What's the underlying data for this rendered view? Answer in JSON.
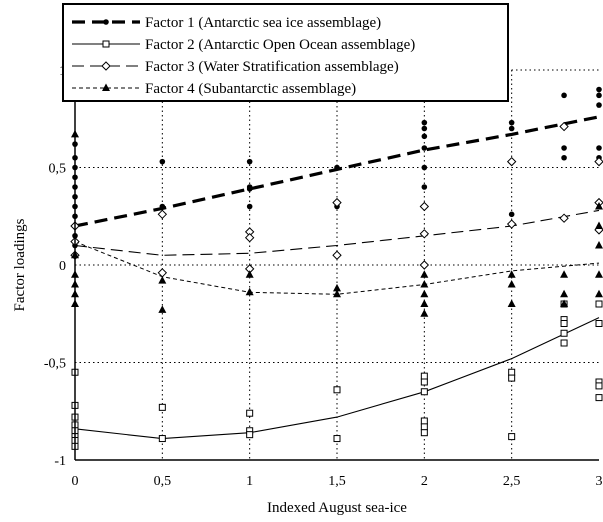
{
  "chart_data": {
    "type": "scatter",
    "xlabel": "Indexed August sea-ice",
    "ylabel": "Factor loadings",
    "xlim": [
      0,
      3
    ],
    "ylim": [
      -1,
      1
    ],
    "x_ticks": [
      "0",
      "0,5",
      "1",
      "1,5",
      "2",
      "2,5",
      "3"
    ],
    "y_ticks": [
      "-1",
      "-0,5",
      "0",
      "0,5",
      "1"
    ],
    "grid": true,
    "legend_position": "top-left",
    "series": [
      {
        "name": "Factor 1 (Antarctic sea ice assemblage)",
        "marker": "filled-circle",
        "trend": [
          [
            0,
            0.2
          ],
          [
            0.5,
            0.29
          ],
          [
            1,
            0.39
          ],
          [
            1.5,
            0.49
          ],
          [
            2,
            0.59
          ],
          [
            2.5,
            0.67
          ],
          [
            3,
            0.76
          ]
        ],
        "points": [
          [
            0,
            0.62
          ],
          [
            0,
            0.55
          ],
          [
            0,
            0.5
          ],
          [
            0,
            0.45
          ],
          [
            0,
            0.4
          ],
          [
            0,
            0.35
          ],
          [
            0,
            0.3
          ],
          [
            0,
            0.25
          ],
          [
            0,
            0.2
          ],
          [
            0,
            0.15
          ],
          [
            0,
            0.1
          ],
          [
            0.5,
            0.53
          ],
          [
            0.5,
            0.3
          ],
          [
            1,
            0.53
          ],
          [
            1,
            0.4
          ],
          [
            1,
            0.39
          ],
          [
            1,
            0.3
          ],
          [
            1.5,
            0.5
          ],
          [
            1.5,
            0.3
          ],
          [
            1.5,
            0.05
          ],
          [
            2,
            0.73
          ],
          [
            2,
            0.7
          ],
          [
            2,
            0.66
          ],
          [
            2,
            0.6
          ],
          [
            2,
            0.5
          ],
          [
            2,
            0.4
          ],
          [
            2,
            0.3
          ],
          [
            2.5,
            0.73
          ],
          [
            2.5,
            0.7
          ],
          [
            2.5,
            0.26
          ],
          [
            2.8,
            0.87
          ],
          [
            2.8,
            0.6
          ],
          [
            2.8,
            0.55
          ],
          [
            3,
            0.9
          ],
          [
            3,
            0.87
          ],
          [
            3,
            0.82
          ],
          [
            3,
            0.6
          ],
          [
            3,
            0.55
          ]
        ]
      },
      {
        "name": "Factor 2 (Antarctic Open Ocean assemblage)",
        "marker": "open-square",
        "trend": [
          [
            0,
            -0.84
          ],
          [
            0.5,
            -0.89
          ],
          [
            1,
            -0.86
          ],
          [
            1.5,
            -0.78
          ],
          [
            2,
            -0.65
          ],
          [
            2.5,
            -0.48
          ],
          [
            3,
            -0.27
          ]
        ],
        "points": [
          [
            0,
            -0.55
          ],
          [
            0,
            -0.72
          ],
          [
            0,
            -0.78
          ],
          [
            0,
            -0.82
          ],
          [
            0,
            -0.85
          ],
          [
            0,
            -0.88
          ],
          [
            0,
            -0.9
          ],
          [
            0,
            -0.93
          ],
          [
            0.5,
            -0.73
          ],
          [
            0.5,
            -0.89
          ],
          [
            1,
            -0.76
          ],
          [
            1,
            -0.85
          ],
          [
            1,
            -0.87
          ],
          [
            1.5,
            -0.64
          ],
          [
            1.5,
            -0.89
          ],
          [
            2,
            -0.57
          ],
          [
            2,
            -0.6
          ],
          [
            2,
            -0.65
          ],
          [
            2,
            -0.8
          ],
          [
            2,
            -0.83
          ],
          [
            2,
            -0.86
          ],
          [
            2.5,
            -0.55
          ],
          [
            2.5,
            -0.58
          ],
          [
            2.5,
            -0.88
          ],
          [
            2.8,
            -0.2
          ],
          [
            2.8,
            -0.28
          ],
          [
            2.8,
            -0.3
          ],
          [
            2.8,
            -0.35
          ],
          [
            2.8,
            -0.4
          ],
          [
            3,
            -0.2
          ],
          [
            3,
            -0.3
          ],
          [
            3,
            -0.6
          ],
          [
            3,
            -0.62
          ],
          [
            3,
            -0.68
          ]
        ]
      },
      {
        "name": "Factor 3 (Water Stratification assemblage)",
        "marker": "open-diamond",
        "trend": [
          [
            0,
            0.1
          ],
          [
            0.5,
            0.05
          ],
          [
            1,
            0.06
          ],
          [
            1.5,
            0.1
          ],
          [
            2,
            0.15
          ],
          [
            2.5,
            0.2
          ],
          [
            3,
            0.28
          ]
        ],
        "points": [
          [
            0,
            0.2
          ],
          [
            0,
            0.12
          ],
          [
            0,
            0.05
          ],
          [
            0.5,
            0.26
          ],
          [
            0.5,
            -0.04
          ],
          [
            1,
            0.17
          ],
          [
            1,
            0.14
          ],
          [
            1,
            -0.02
          ],
          [
            1.5,
            0.32
          ],
          [
            1.5,
            0.05
          ],
          [
            2,
            0.3
          ],
          [
            2,
            0.16
          ],
          [
            2,
            0.0
          ],
          [
            2.5,
            0.53
          ],
          [
            2.5,
            0.21
          ],
          [
            2.8,
            0.71
          ],
          [
            2.8,
            0.24
          ],
          [
            3,
            0.53
          ],
          [
            3,
            0.32
          ],
          [
            3,
            0.18
          ]
        ]
      },
      {
        "name": "Factor 4 (Subantarctic assemblage)",
        "marker": "filled-triangle",
        "trend": [
          [
            0,
            0.12
          ],
          [
            0.5,
            -0.06
          ],
          [
            1,
            -0.14
          ],
          [
            1.5,
            -0.15
          ],
          [
            2,
            -0.1
          ],
          [
            2.5,
            -0.03
          ],
          [
            3,
            0.01
          ]
        ],
        "points": [
          [
            0,
            0.67
          ],
          [
            0,
            0.05
          ],
          [
            0,
            -0.05
          ],
          [
            0,
            -0.1
          ],
          [
            0,
            -0.15
          ],
          [
            0,
            -0.2
          ],
          [
            0.5,
            -0.08
          ],
          [
            0.5,
            -0.23
          ],
          [
            1,
            -0.05
          ],
          [
            1,
            -0.14
          ],
          [
            1.5,
            -0.12
          ],
          [
            1.5,
            -0.15
          ],
          [
            2,
            -0.05
          ],
          [
            2,
            -0.1
          ],
          [
            2,
            -0.15
          ],
          [
            2,
            -0.2
          ],
          [
            2,
            -0.25
          ],
          [
            2.5,
            -0.05
          ],
          [
            2.5,
            -0.1
          ],
          [
            2.5,
            -0.2
          ],
          [
            2.8,
            -0.05
          ],
          [
            2.8,
            -0.15
          ],
          [
            2.8,
            -0.2
          ],
          [
            3,
            0.3
          ],
          [
            3,
            0.2
          ],
          [
            3,
            0.1
          ],
          [
            3,
            -0.05
          ],
          [
            3,
            -0.15
          ]
        ]
      }
    ]
  }
}
